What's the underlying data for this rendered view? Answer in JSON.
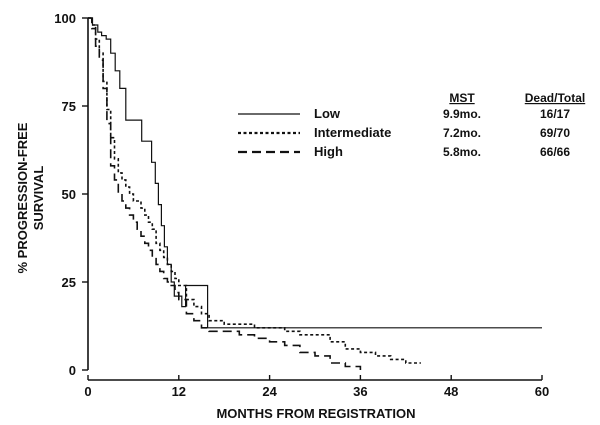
{
  "chart_data": {
    "type": "line",
    "xlabel": "MONTHS FROM REGISTRATION",
    "ylabel_line1": "% PROGRESSION-FREE",
    "ylabel_line2": "SURVIVAL",
    "xlim": [
      0,
      60
    ],
    "ylim": [
      0,
      100
    ],
    "xticks": [
      "0",
      "12",
      "24",
      "36",
      "48",
      "60"
    ],
    "xtick_values": [
      0,
      12,
      24,
      36,
      48,
      60
    ],
    "yticks": [
      "0",
      "25",
      "50",
      "75",
      "100"
    ],
    "ytick_values": [
      0,
      25,
      50,
      75,
      100
    ],
    "grid": false,
    "legend_position": "top-right",
    "table_headers": {
      "mst": "MST",
      "dead_total": "Dead/Total"
    },
    "series": [
      {
        "name": "Low",
        "mst": "9.9mo.",
        "dead_total": "16/17",
        "style": "solid",
        "color": "#111111",
        "x": [
          0,
          0.6,
          1.3,
          1.8,
          2.4,
          3.0,
          3.6,
          4.2,
          5.0,
          7.1,
          8.4,
          8.9,
          9.3,
          9.7,
          10.1,
          10.5,
          11.0,
          11.4,
          12.4,
          12.9,
          13.3,
          15.8,
          16.1,
          60
        ],
        "y": [
          100,
          98,
          96,
          95,
          94,
          90,
          85,
          80,
          71,
          65,
          59,
          53,
          47,
          41,
          35,
          30,
          25,
          21,
          18,
          24,
          24,
          12,
          12,
          12
        ]
      },
      {
        "name": "Intermediate",
        "mst": "7.2mo.",
        "dead_total": "69/70",
        "style": "dotted",
        "color": "#111111",
        "x": [
          0,
          0.5,
          1.0,
          1.5,
          2.0,
          2.5,
          3.0,
          3.5,
          4.0,
          4.5,
          5.0,
          5.5,
          6.0,
          6.5,
          7.0,
          7.5,
          8.0,
          8.5,
          9.0,
          9.5,
          10.0,
          10.5,
          11.0,
          11.5,
          12.0,
          13.0,
          14.0,
          15.0,
          16.0,
          17.0,
          18.0,
          20.0,
          22.0,
          24.0,
          26.0,
          28.0,
          30.0,
          32.0,
          34.0,
          36.0,
          38.0,
          40.0,
          42.0,
          44.0
        ],
        "y": [
          100,
          98,
          94,
          90,
          82,
          74,
          66,
          60,
          56,
          54,
          52,
          50,
          48,
          48,
          46,
          44,
          42,
          40,
          36,
          34,
          32,
          30,
          28,
          26,
          24,
          20,
          18,
          16,
          14,
          14,
          13,
          13,
          12,
          12,
          11,
          10,
          10,
          8,
          6,
          5,
          4,
          3,
          2,
          2
        ]
      },
      {
        "name": "High",
        "mst": "5.8mo.",
        "dead_total": "66/66",
        "style": "dashed",
        "color": "#111111",
        "x": [
          0,
          0.5,
          1.0,
          1.5,
          2.0,
          2.5,
          3.0,
          3.5,
          4.0,
          4.5,
          5.0,
          5.5,
          6.0,
          6.5,
          7.0,
          7.5,
          8.0,
          8.5,
          9.0,
          9.5,
          10.0,
          10.5,
          11.0,
          11.5,
          12.0,
          13.0,
          14.0,
          15.0,
          16.0,
          17.0,
          18.0,
          20.0,
          22.0,
          24.0,
          26.0,
          28.0,
          30.0,
          32.0,
          34.0,
          36.0
        ],
        "y": [
          100,
          97,
          92,
          88,
          80,
          70,
          58,
          54,
          50,
          48,
          46,
          44,
          42,
          40,
          38,
          36,
          34,
          32,
          30,
          28,
          26,
          25,
          24,
          22,
          20,
          16,
          14,
          12,
          11,
          11,
          11,
          10,
          9,
          8,
          7,
          5,
          4,
          2,
          1,
          0
        ]
      }
    ]
  }
}
